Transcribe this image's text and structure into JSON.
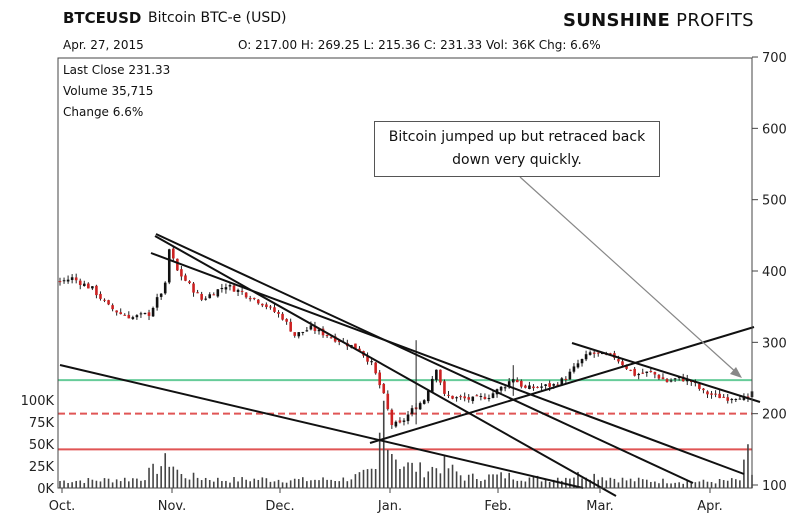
{
  "header": {
    "symbol": "BTCEUSD",
    "name": "Bitcoin BTC-e (USD)",
    "date": "Apr. 27, 2015",
    "ohlc_line": "O: 217.00  H: 269.25  L: 215.36  C: 231.33  Vol: 36K  Chg: 6.6%",
    "brand_bold": "SUNSHINE",
    "brand_rest": " PROFITS"
  },
  "stats": {
    "last_close": "Last Close  231.33",
    "volume": "Volume  35,715",
    "change": "Change  6.6%"
  },
  "annotation": {
    "text": "Bitcoin jumped up but retraced back down very quickly."
  },
  "colors": {
    "up": "#111111",
    "down": "#cc2222",
    "green_line": "#66cc99",
    "red_line": "#e05555",
    "trend": "#111111"
  },
  "chart_data": {
    "type": "candlestick",
    "price_axis": {
      "ticks": [
        100,
        200,
        300,
        400,
        500,
        600,
        700
      ],
      "range": [
        100,
        700
      ]
    },
    "volume_axis": {
      "ticks": [
        "0K",
        "25K",
        "50K",
        "75K",
        "100K"
      ],
      "range": [
        0,
        100
      ]
    },
    "x_labels": [
      "Oct.",
      "Nov.",
      "Dec.",
      "Jan.",
      "Feb.",
      "Mar.",
      "Apr."
    ],
    "horizontal_levels": [
      {
        "price": 247,
        "style": "solid",
        "color": "green"
      },
      {
        "price": 200,
        "style": "dashed",
        "color": "red"
      },
      {
        "price": 150,
        "style": "solid",
        "color": "red"
      }
    ],
    "price_path": [
      [
        0,
        385
      ],
      [
        3,
        390
      ],
      [
        8,
        375
      ],
      [
        12,
        350
      ],
      [
        15,
        340
      ],
      [
        18,
        335
      ],
      [
        22,
        340
      ],
      [
        24,
        360
      ],
      [
        26,
        380
      ],
      [
        27,
        430
      ],
      [
        29,
        400
      ],
      [
        32,
        380
      ],
      [
        35,
        360
      ],
      [
        38,
        370
      ],
      [
        41,
        380
      ],
      [
        45,
        370
      ],
      [
        50,
        355
      ],
      [
        55,
        335
      ],
      [
        58,
        310
      ],
      [
        62,
        320
      ],
      [
        66,
        310
      ],
      [
        70,
        300
      ],
      [
        74,
        290
      ],
      [
        77,
        270
      ],
      [
        79,
        240
      ],
      [
        80,
        225
      ],
      [
        82,
        185
      ],
      [
        84,
        185
      ],
      [
        87,
        205
      ],
      [
        90,
        220
      ],
      [
        93,
        265
      ],
      [
        95,
        225
      ],
      [
        98,
        222
      ],
      [
        102,
        220
      ],
      [
        106,
        225
      ],
      [
        110,
        240
      ],
      [
        112,
        250
      ],
      [
        115,
        235
      ],
      [
        119,
        238
      ],
      [
        122,
        240
      ],
      [
        125,
        250
      ],
      [
        128,
        270
      ],
      [
        131,
        285
      ],
      [
        134,
        282
      ],
      [
        137,
        280
      ],
      [
        139,
        270
      ],
      [
        142,
        255
      ],
      [
        146,
        258
      ],
      [
        150,
        245
      ],
      [
        153,
        250
      ],
      [
        156,
        245
      ],
      [
        159,
        230
      ],
      [
        162,
        225
      ],
      [
        165,
        222
      ],
      [
        168,
        225
      ],
      [
        170,
        218
      ],
      [
        171,
        231
      ]
    ],
    "volume_path": [
      [
        0,
        8
      ],
      [
        10,
        9
      ],
      [
        20,
        11
      ],
      [
        27,
        32
      ],
      [
        30,
        14
      ],
      [
        40,
        9
      ],
      [
        50,
        10
      ],
      [
        60,
        9
      ],
      [
        70,
        10
      ],
      [
        78,
        18
      ],
      [
        80,
        95
      ],
      [
        82,
        45
      ],
      [
        84,
        28
      ],
      [
        90,
        20
      ],
      [
        95,
        26
      ],
      [
        100,
        12
      ],
      [
        110,
        14
      ],
      [
        120,
        10
      ],
      [
        130,
        16
      ],
      [
        140,
        9
      ],
      [
        150,
        8
      ],
      [
        160,
        7
      ],
      [
        168,
        9
      ],
      [
        170,
        38
      ],
      [
        171,
        16
      ]
    ],
    "trendlines": [
      [
        [
          155,
          236
        ],
        [
          616,
          496
        ]
      ],
      [
        [
          151,
          253
        ],
        [
          744,
          474
        ]
      ],
      [
        [
          156,
          234
        ],
        [
          693,
          483
        ]
      ],
      [
        [
          60,
          365
        ],
        [
          583,
          488
        ]
      ],
      [
        [
          370,
          443
        ],
        [
          754,
          327
        ]
      ],
      [
        [
          572,
          343
        ],
        [
          760,
          402
        ]
      ]
    ]
  }
}
